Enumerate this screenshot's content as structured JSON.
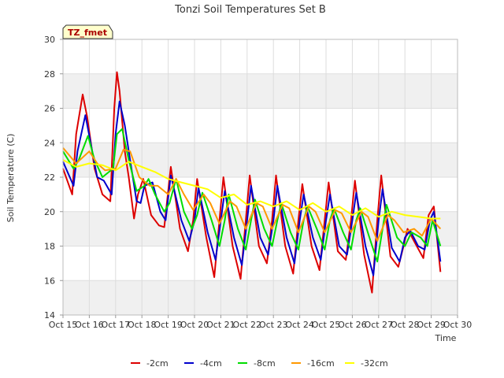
{
  "chart_data": {
    "type": "line",
    "title": "Tonzi Soil Temperatures Set B",
    "xlabel": "Time",
    "ylabel": "Soil Temperature (C)",
    "badge": "TZ_fmet",
    "xlim": [
      15,
      30
    ],
    "ylim": [
      14,
      30
    ],
    "x_ticks": [
      15,
      16,
      17,
      18,
      19,
      20,
      21,
      22,
      23,
      24,
      25,
      26,
      27,
      28,
      29,
      30
    ],
    "x_tick_labels": [
      "Oct 15",
      "Oct 16",
      "Oct 17",
      "Oct 18",
      "Oct 19",
      "Oct 20",
      "Oct 21",
      "Oct 22",
      "Oct 23",
      "Oct 24",
      "Oct 25",
      "Oct 26",
      "Oct 27",
      "Oct 28",
      "Oct 29",
      "Oct 30"
    ],
    "y_ticks": [
      14,
      16,
      18,
      20,
      22,
      24,
      26,
      28,
      30
    ],
    "y_tick_labels": [
      "14",
      "16",
      "18",
      "20",
      "22",
      "24",
      "26",
      "28",
      "30"
    ],
    "grid": true,
    "legend_position": "bottom",
    "background_bands": "#f0f0f0",
    "series": [
      {
        "name": "-2cm",
        "color": "#dd0000",
        "x": [
          15.0,
          15.35,
          15.5,
          15.75,
          15.92,
          16.2,
          16.5,
          16.8,
          16.95,
          17.05,
          17.15,
          17.35,
          17.5,
          17.7,
          17.85,
          18.05,
          18.35,
          18.65,
          18.85,
          19.1,
          19.45,
          19.75,
          19.95,
          20.1,
          20.45,
          20.75,
          20.95,
          21.1,
          21.45,
          21.75,
          21.95,
          22.1,
          22.45,
          22.75,
          22.95,
          23.1,
          23.45,
          23.75,
          23.95,
          24.1,
          24.45,
          24.75,
          24.95,
          25.1,
          25.45,
          25.75,
          25.95,
          26.1,
          26.45,
          26.75,
          26.95,
          27.1,
          27.45,
          27.75,
          27.95,
          28.1,
          28.45,
          28.7,
          28.9,
          29.1,
          29.35
        ],
        "y": [
          22.5,
          21.0,
          24.5,
          26.8,
          25.5,
          22.5,
          21.0,
          20.6,
          26.0,
          28.1,
          27.0,
          23.5,
          22.0,
          19.6,
          21.0,
          21.9,
          19.8,
          19.2,
          19.1,
          22.6,
          19.0,
          17.7,
          19.5,
          21.9,
          18.5,
          16.2,
          19.5,
          22.0,
          18.0,
          16.1,
          19.5,
          22.1,
          18.0,
          17.0,
          19.5,
          22.1,
          18.0,
          16.4,
          19.5,
          21.6,
          18.0,
          16.6,
          19.5,
          21.7,
          17.7,
          17.2,
          19.5,
          21.8,
          17.5,
          15.3,
          19.5,
          22.1,
          17.4,
          16.8,
          18.0,
          19.0,
          18.0,
          17.3,
          19.8,
          20.3,
          16.5
        ]
      },
      {
        "name": "-4cm",
        "color": "#0000cc",
        "x": [
          15.0,
          15.4,
          15.55,
          15.85,
          16.05,
          16.3,
          16.55,
          16.85,
          17.0,
          17.15,
          17.35,
          17.55,
          17.8,
          17.95,
          18.1,
          18.4,
          18.7,
          18.9,
          19.1,
          19.5,
          19.8,
          20.0,
          20.15,
          20.5,
          20.8,
          21.0,
          21.15,
          21.5,
          21.8,
          22.0,
          22.15,
          22.5,
          22.8,
          23.0,
          23.15,
          23.5,
          23.8,
          24.0,
          24.15,
          24.5,
          24.8,
          25.0,
          25.15,
          25.5,
          25.8,
          26.0,
          26.15,
          26.5,
          26.8,
          27.0,
          27.15,
          27.5,
          27.8,
          28.0,
          28.2,
          28.5,
          28.75,
          28.95,
          29.1,
          29.35
        ],
        "y": [
          22.9,
          21.5,
          23.5,
          25.6,
          24.0,
          22.0,
          21.8,
          21.0,
          24.5,
          26.4,
          25.0,
          23.0,
          20.6,
          20.5,
          21.5,
          21.7,
          20.0,
          19.5,
          22.1,
          19.5,
          18.3,
          19.5,
          21.4,
          18.8,
          17.2,
          19.5,
          21.2,
          18.5,
          16.9,
          19.5,
          21.5,
          18.5,
          17.5,
          19.5,
          21.5,
          18.5,
          17.0,
          19.5,
          21.0,
          18.5,
          17.2,
          19.5,
          21.0,
          18.0,
          17.5,
          19.5,
          21.1,
          18.0,
          16.3,
          19.5,
          21.3,
          17.9,
          17.1,
          18.5,
          18.9,
          18.0,
          17.8,
          19.5,
          20.0,
          17.1
        ]
      },
      {
        "name": "-8cm",
        "color": "#00dd00",
        "x": [
          15.0,
          15.4,
          15.6,
          15.95,
          16.2,
          16.5,
          16.9,
          17.05,
          17.25,
          17.5,
          17.8,
          18.1,
          18.25,
          18.5,
          18.85,
          19.05,
          19.3,
          19.6,
          19.9,
          20.1,
          20.3,
          20.65,
          20.95,
          21.15,
          21.3,
          21.65,
          21.95,
          22.15,
          22.3,
          22.65,
          22.95,
          23.15,
          23.3,
          23.65,
          23.95,
          24.15,
          24.3,
          24.65,
          24.95,
          25.15,
          25.3,
          25.65,
          25.95,
          26.15,
          26.3,
          26.65,
          26.95,
          27.15,
          27.3,
          27.7,
          28.0,
          28.25,
          28.6,
          28.85,
          29.05,
          29.35
        ],
        "y": [
          23.5,
          22.5,
          23.0,
          24.4,
          23.0,
          22.0,
          22.5,
          24.5,
          24.8,
          23.0,
          21.2,
          21.5,
          21.9,
          21.0,
          20.0,
          20.5,
          21.9,
          20.0,
          19.0,
          19.8,
          21.1,
          19.5,
          18.0,
          19.5,
          21.0,
          19.0,
          17.8,
          19.5,
          20.7,
          19.0,
          18.0,
          19.5,
          20.5,
          18.8,
          17.8,
          19.5,
          20.3,
          19.0,
          17.8,
          19.5,
          20.2,
          18.8,
          17.8,
          19.5,
          20.2,
          18.5,
          17.1,
          19.0,
          20.4,
          18.5,
          18.0,
          18.8,
          18.5,
          18.0,
          19.5,
          18.0
        ]
      },
      {
        "name": "-16cm",
        "color": "#ff9900",
        "x": [
          15.0,
          15.5,
          16.0,
          16.3,
          16.6,
          17.0,
          17.3,
          17.55,
          17.9,
          18.3,
          18.6,
          19.0,
          19.3,
          19.6,
          19.95,
          20.35,
          20.6,
          20.95,
          21.35,
          21.6,
          21.95,
          22.35,
          22.6,
          22.95,
          23.35,
          23.6,
          23.95,
          24.35,
          24.6,
          24.95,
          25.35,
          25.6,
          25.95,
          26.35,
          26.6,
          26.95,
          27.35,
          27.6,
          27.95,
          28.35,
          28.65,
          29.0,
          29.35
        ],
        "y": [
          23.7,
          22.8,
          23.5,
          22.8,
          22.4,
          22.5,
          23.6,
          23.5,
          22.0,
          21.5,
          21.5,
          21.0,
          21.9,
          21.0,
          20.1,
          21.0,
          20.5,
          19.3,
          20.6,
          20.3,
          19.0,
          20.5,
          20.3,
          19.0,
          20.4,
          20.2,
          18.8,
          20.3,
          20.0,
          18.8,
          20.1,
          19.9,
          18.8,
          20.0,
          19.7,
          18.3,
          19.8,
          19.5,
          18.8,
          19.0,
          18.6,
          19.6,
          19.0
        ]
      },
      {
        "name": "-32cm",
        "color": "#ffff00",
        "x": [
          15.0,
          15.5,
          16.0,
          16.5,
          17.0,
          17.5,
          18.0,
          18.5,
          19.0,
          19.5,
          20.0,
          20.5,
          21.0,
          21.5,
          22.0,
          22.5,
          23.0,
          23.5,
          24.0,
          24.5,
          25.0,
          25.5,
          26.0,
          26.5,
          27.0,
          27.5,
          28.0,
          28.5,
          29.0,
          29.35
        ],
        "y": [
          23.0,
          22.6,
          22.8,
          22.7,
          22.4,
          22.9,
          22.6,
          22.3,
          21.9,
          21.7,
          21.5,
          21.3,
          20.8,
          21.0,
          20.4,
          20.6,
          20.3,
          20.6,
          20.1,
          20.5,
          20.0,
          20.3,
          19.8,
          20.2,
          19.7,
          20.0,
          19.8,
          19.7,
          19.6,
          19.6
        ]
      }
    ]
  }
}
